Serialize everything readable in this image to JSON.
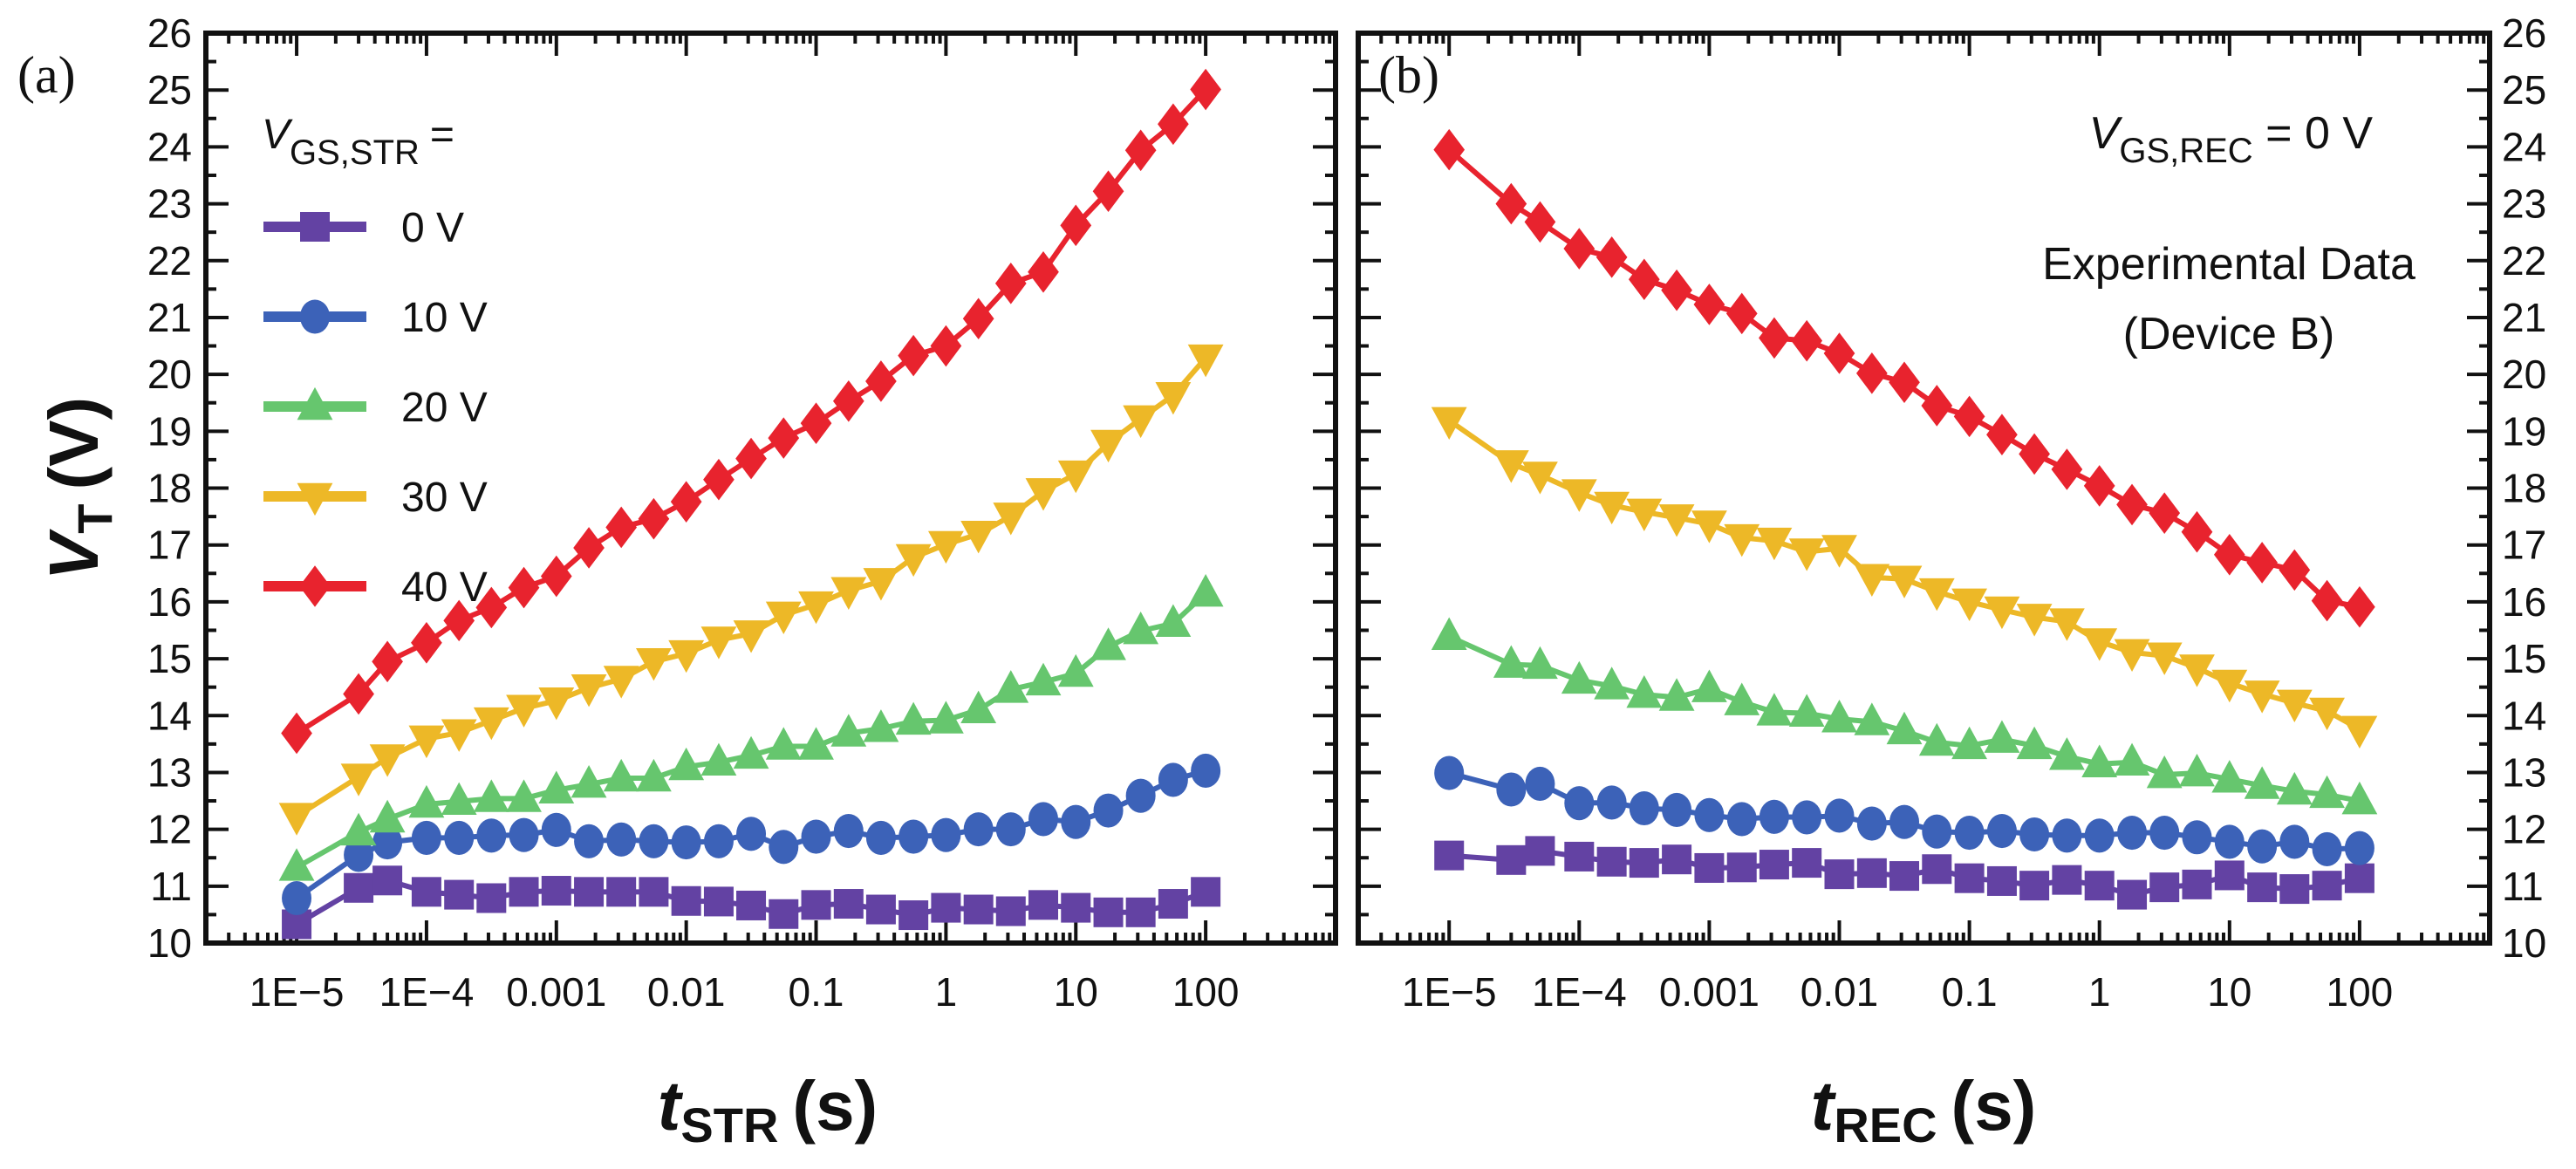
{
  "chart_data": [
    {
      "panel": "(a)",
      "type": "line",
      "xscale": "log",
      "xlabel_main": "t",
      "xlabel_sub": "STR",
      "xlabel_unit": "(s)",
      "ylabel_main": "V",
      "ylabel_sub": "T",
      "ylabel_unit": "(V)",
      "xlim": [
        2e-06,
        1000
      ],
      "ylim": [
        10,
        26
      ],
      "xticks": [
        1e-05,
        0.0001,
        0.001,
        0.01,
        0.1,
        1,
        10,
        100
      ],
      "xtick_labels": [
        "1E−5",
        "1E−4",
        "0.001",
        "0.01",
        "0.1",
        "1",
        "10",
        "100"
      ],
      "yticks": [
        10,
        11,
        12,
        13,
        14,
        15,
        16,
        17,
        18,
        19,
        20,
        21,
        22,
        23,
        24,
        25,
        26
      ],
      "ytick_labels": [
        "10",
        "11",
        "12",
        "13",
        "14",
        "15",
        "16",
        "17",
        "18",
        "19",
        "20",
        "21",
        "22",
        "23",
        "24",
        "25",
        "26"
      ],
      "yaxis_side": "left",
      "grid": false,
      "legend": {
        "title_main": "V",
        "title_sub": "GS,STR",
        "title_suffix": "=",
        "placement": "top-left"
      },
      "x": [
        1e-05,
        3e-05,
        5e-05,
        0.0001,
        0.000178,
        0.000316,
        0.000562,
        0.001,
        0.00178,
        0.00316,
        0.00562,
        0.01,
        0.0178,
        0.0316,
        0.0562,
        0.1,
        0.178,
        0.316,
        0.562,
        1,
        1.78,
        3.16,
        5.62,
        10,
        17.8,
        31.6,
        56.2,
        100
      ],
      "series": [
        {
          "name": "0 V",
          "color": "#6342a3",
          "marker": "square",
          "values": [
            10.33,
            10.97,
            11.1,
            10.9,
            10.85,
            10.79,
            10.9,
            10.92,
            10.9,
            10.9,
            10.9,
            10.74,
            10.73,
            10.66,
            10.51,
            10.67,
            10.69,
            10.59,
            10.49,
            10.62,
            10.59,
            10.56,
            10.67,
            10.62,
            10.54,
            10.54,
            10.69,
            10.9
          ]
        },
        {
          "name": "10 V",
          "color": "#3c62b8",
          "marker": "circle",
          "values": [
            10.79,
            11.55,
            11.77,
            11.85,
            11.85,
            11.89,
            11.9,
            11.99,
            11.79,
            11.82,
            11.79,
            11.77,
            11.79,
            11.92,
            11.69,
            11.87,
            11.97,
            11.85,
            11.87,
            11.9,
            12.0,
            12.0,
            12.18,
            12.13,
            12.33,
            12.59,
            12.87,
            13.03
          ]
        },
        {
          "name": "20 V",
          "color": "#66c66e",
          "marker": "triangle-up",
          "values": [
            11.33,
            11.95,
            12.18,
            12.44,
            12.49,
            12.54,
            12.54,
            12.69,
            12.79,
            12.9,
            12.9,
            13.1,
            13.18,
            13.3,
            13.46,
            13.46,
            13.69,
            13.77,
            13.9,
            13.92,
            14.1,
            14.46,
            14.59,
            14.74,
            15.21,
            15.49,
            15.62,
            16.15
          ]
        },
        {
          "name": "30 V",
          "color": "#edb827",
          "marker": "triangle-down",
          "values": [
            12.23,
            12.92,
            13.26,
            13.59,
            13.7,
            13.91,
            14.13,
            14.26,
            14.49,
            14.64,
            14.95,
            15.09,
            15.33,
            15.44,
            15.77,
            15.95,
            16.2,
            16.36,
            16.78,
            17.01,
            17.19,
            17.51,
            17.94,
            18.25,
            18.79,
            19.22,
            19.63,
            20.29
          ]
        },
        {
          "name": "40 V",
          "color": "#e8232e",
          "marker": "diamond",
          "values": [
            13.69,
            14.38,
            14.95,
            15.28,
            15.67,
            15.9,
            16.25,
            16.45,
            16.95,
            17.31,
            17.46,
            17.76,
            18.15,
            18.52,
            18.88,
            19.14,
            19.53,
            19.88,
            20.33,
            20.5,
            20.98,
            21.6,
            21.8,
            22.62,
            23.22,
            23.94,
            24.4,
            25.01
          ]
        }
      ]
    },
    {
      "panel": "(b)",
      "type": "line",
      "xscale": "log",
      "xlabel_main": "t",
      "xlabel_sub": "REC",
      "xlabel_unit": "(s)",
      "xlim": [
        2e-06,
        1000
      ],
      "ylim": [
        10,
        26
      ],
      "xticks": [
        1e-05,
        0.0001,
        0.001,
        0.01,
        0.1,
        1,
        10,
        100
      ],
      "xtick_labels": [
        "1E−5",
        "1E−4",
        "0.001",
        "0.01",
        "0.1",
        "1",
        "10",
        "100"
      ],
      "yticks": [
        10,
        11,
        12,
        13,
        14,
        15,
        16,
        17,
        18,
        19,
        20,
        21,
        22,
        23,
        24,
        25,
        26
      ],
      "ytick_labels": [
        "10",
        "11",
        "12",
        "13",
        "14",
        "15",
        "16",
        "17",
        "18",
        "19",
        "20",
        "21",
        "22",
        "23",
        "24",
        "25",
        "26"
      ],
      "yaxis_side": "right",
      "grid": false,
      "annotations": [
        {
          "main": "V",
          "sub": "GS,REC",
          "suffix": " = 0 V",
          "placement": "top-right"
        },
        {
          "text": "Experimental Data",
          "placement": "top-right"
        },
        {
          "text": "(Device B)",
          "placement": "top-right"
        }
      ],
      "x": [
        1e-05,
        3e-05,
        5e-05,
        0.0001,
        0.000178,
        0.000316,
        0.000562,
        0.001,
        0.00178,
        0.00316,
        0.00562,
        0.01,
        0.0178,
        0.0316,
        0.0562,
        0.1,
        0.178,
        0.316,
        0.562,
        1,
        1.78,
        3.16,
        5.62,
        10,
        17.8,
        31.6,
        56.2,
        100
      ],
      "series": [
        {
          "name": "0 V",
          "color": "#6342a3",
          "marker": "square",
          "values": [
            11.54,
            11.46,
            11.62,
            11.52,
            11.43,
            11.41,
            11.47,
            11.32,
            11.33,
            11.38,
            11.41,
            11.21,
            11.23,
            11.18,
            11.3,
            11.14,
            11.09,
            11.01,
            11.11,
            11.01,
            10.85,
            10.98,
            11.03,
            11.19,
            10.98,
            10.95,
            11.01,
            11.14
          ]
        },
        {
          "name": "10 V",
          "color": "#3c62b8",
          "marker": "circle",
          "values": [
            12.99,
            12.7,
            12.8,
            12.46,
            12.47,
            12.37,
            12.34,
            12.25,
            12.18,
            12.22,
            12.21,
            12.24,
            12.1,
            12.13,
            11.96,
            11.94,
            11.97,
            11.91,
            11.89,
            11.89,
            11.94,
            11.94,
            11.86,
            11.78,
            11.7,
            11.78,
            11.65,
            11.67
          ]
        },
        {
          "name": "20 V",
          "color": "#66c66e",
          "marker": "triangle-up",
          "values": [
            15.39,
            14.9,
            14.88,
            14.62,
            14.52,
            14.37,
            14.32,
            14.47,
            14.24,
            14.06,
            14.04,
            13.94,
            13.89,
            13.73,
            13.53,
            13.47,
            13.58,
            13.47,
            13.28,
            13.15,
            13.18,
            12.96,
            12.99,
            12.88,
            12.77,
            12.67,
            12.61,
            12.5
          ]
        },
        {
          "name": "30 V",
          "color": "#edb827",
          "marker": "triangle-down",
          "values": [
            19.19,
            18.43,
            18.23,
            17.92,
            17.7,
            17.58,
            17.48,
            17.37,
            17.13,
            17.07,
            16.88,
            16.94,
            16.43,
            16.4,
            16.18,
            16.0,
            15.86,
            15.73,
            15.65,
            15.3,
            15.11,
            15.05,
            14.84,
            14.57,
            14.38,
            14.22,
            14.08,
            13.76
          ]
        },
        {
          "name": "40 V",
          "color": "#e8232e",
          "marker": "diamond",
          "values": [
            23.95,
            23.0,
            22.68,
            22.21,
            22.06,
            21.67,
            21.48,
            21.23,
            21.07,
            20.64,
            20.59,
            20.37,
            20.02,
            19.86,
            19.45,
            19.26,
            18.94,
            18.6,
            18.33,
            18.04,
            17.71,
            17.56,
            17.23,
            16.83,
            16.69,
            16.56,
            16.02,
            15.91
          ]
        }
      ]
    }
  ]
}
